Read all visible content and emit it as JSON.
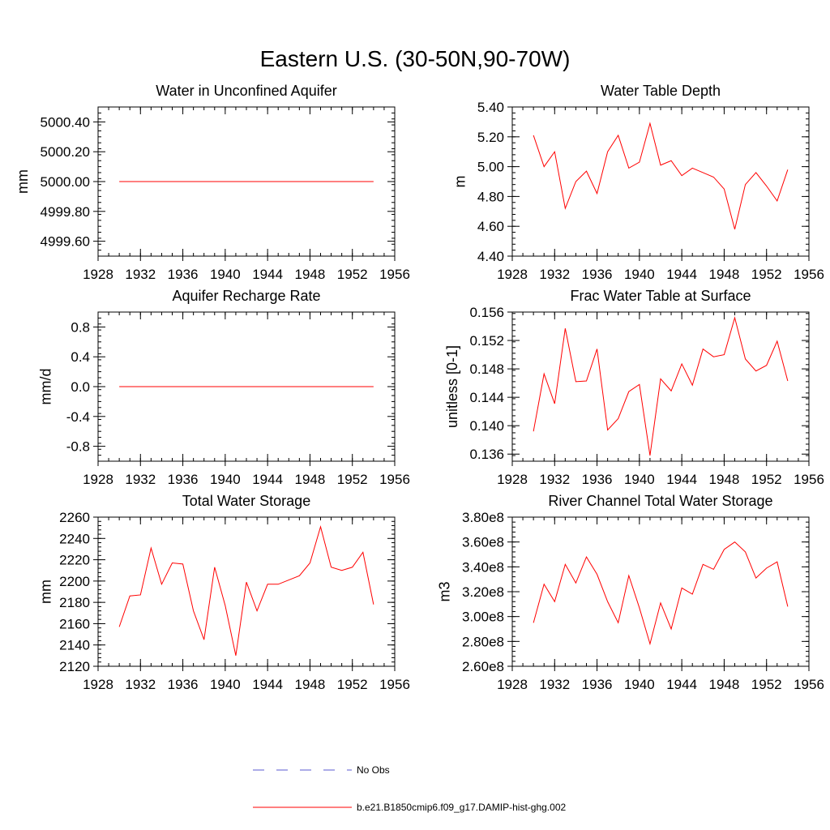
{
  "title": "Eastern U.S. (30-50N,90-70W)",
  "legend": [
    {
      "label": "No Obs",
      "color": "#5a5ad0",
      "dash": true
    },
    {
      "label": "b.e21.B1850cmip6.f09_g17.DAMIP-hist-ghg.002",
      "color": "#ff0000",
      "dash": false
    }
  ],
  "chart_data": [
    {
      "type": "line",
      "title": "Water in Unconfined Aquifer",
      "ylabel": "mm",
      "xlim": [
        1928,
        1956
      ],
      "ylim": [
        4999.5,
        5000.5
      ],
      "xticks": [
        1928,
        1932,
        1936,
        1940,
        1944,
        1948,
        1952,
        1956
      ],
      "xticklabels": [
        "1928",
        "1932",
        "1936",
        "1940",
        "1944",
        "1948",
        "1952",
        "1956"
      ],
      "yticks": [
        4999.6,
        4999.8,
        5000.0,
        5000.2,
        5000.4
      ],
      "yticklabels": [
        "4999.60",
        "4999.80",
        "5000.00",
        "5000.20",
        "5000.40"
      ],
      "series": [
        {
          "color": "#ff0000",
          "x": [
            1930,
            1931,
            1932,
            1933,
            1934,
            1935,
            1936,
            1937,
            1938,
            1939,
            1940,
            1941,
            1942,
            1943,
            1944,
            1945,
            1946,
            1947,
            1948,
            1949,
            1950,
            1951,
            1952,
            1953,
            1954
          ],
          "y": [
            5000.0,
            5000.0,
            5000.0,
            5000.0,
            5000.0,
            5000.0,
            5000.0,
            5000.0,
            5000.0,
            5000.0,
            5000.0,
            5000.0,
            5000.0,
            5000.0,
            5000.0,
            5000.0,
            5000.0,
            5000.0,
            5000.0,
            5000.0,
            5000.0,
            5000.0,
            5000.0,
            5000.0,
            5000.0
          ]
        }
      ]
    },
    {
      "type": "line",
      "title": "Water Table Depth",
      "ylabel": "m",
      "xlim": [
        1928,
        1956
      ],
      "ylim": [
        4.4,
        5.4
      ],
      "xticks": [
        1928,
        1932,
        1936,
        1940,
        1944,
        1948,
        1952,
        1956
      ],
      "xticklabels": [
        "1928",
        "1932",
        "1936",
        "1940",
        "1944",
        "1948",
        "1952",
        "1956"
      ],
      "yticks": [
        4.4,
        4.6,
        4.8,
        5.0,
        5.2,
        5.4
      ],
      "yticklabels": [
        "4.40",
        "4.60",
        "4.80",
        "5.00",
        "5.20",
        "5.40"
      ],
      "series": [
        {
          "color": "#ff0000",
          "x": [
            1930,
            1931,
            1932,
            1933,
            1934,
            1935,
            1936,
            1937,
            1938,
            1939,
            1940,
            1941,
            1942,
            1943,
            1944,
            1945,
            1946,
            1947,
            1948,
            1949,
            1950,
            1951,
            1952,
            1953,
            1954
          ],
          "y": [
            5.21,
            5.0,
            5.1,
            4.72,
            4.9,
            4.97,
            4.82,
            5.1,
            5.21,
            4.99,
            5.03,
            5.29,
            5.01,
            5.04,
            4.94,
            4.99,
            4.96,
            4.93,
            4.85,
            4.58,
            4.88,
            4.96,
            4.87,
            4.77,
            4.98
          ]
        }
      ]
    },
    {
      "type": "line",
      "title": "Aquifer Recharge Rate",
      "ylabel": "mm/d",
      "xlim": [
        1928,
        1956
      ],
      "ylim": [
        -1.0,
        1.0
      ],
      "xticks": [
        1928,
        1932,
        1936,
        1940,
        1944,
        1948,
        1952,
        1956
      ],
      "xticklabels": [
        "1928",
        "1932",
        "1936",
        "1940",
        "1944",
        "1948",
        "1952",
        "1956"
      ],
      "yticks": [
        -0.8,
        -0.4,
        0.0,
        0.4,
        0.8
      ],
      "yticklabels": [
        "-0.8",
        "-0.4",
        "0.0",
        "0.4",
        "0.8"
      ],
      "series": [
        {
          "color": "#ff0000",
          "x": [
            1930,
            1931,
            1932,
            1933,
            1934,
            1935,
            1936,
            1937,
            1938,
            1939,
            1940,
            1941,
            1942,
            1943,
            1944,
            1945,
            1946,
            1947,
            1948,
            1949,
            1950,
            1951,
            1952,
            1953,
            1954
          ],
          "y": [
            0,
            0,
            0,
            0,
            0,
            0,
            0,
            0,
            0,
            0,
            0,
            0,
            0,
            0,
            0,
            0,
            0,
            0,
            0,
            0,
            0,
            0,
            0,
            0,
            0
          ]
        }
      ]
    },
    {
      "type": "line",
      "title": "Frac Water Table at Surface",
      "ylabel": "unitless [0-1]",
      "xlim": [
        1928,
        1956
      ],
      "ylim": [
        0.135,
        0.156
      ],
      "xticks": [
        1928,
        1932,
        1936,
        1940,
        1944,
        1948,
        1952,
        1956
      ],
      "xticklabels": [
        "1928",
        "1932",
        "1936",
        "1940",
        "1944",
        "1948",
        "1952",
        "1956"
      ],
      "yticks": [
        0.136,
        0.14,
        0.144,
        0.148,
        0.152,
        0.156
      ],
      "yticklabels": [
        "0.136",
        "0.140",
        "0.144",
        "0.148",
        "0.152",
        "0.156"
      ],
      "series": [
        {
          "color": "#ff0000",
          "x": [
            1930,
            1931,
            1932,
            1933,
            1934,
            1935,
            1936,
            1937,
            1938,
            1939,
            1940,
            1941,
            1942,
            1943,
            1944,
            1945,
            1946,
            1947,
            1948,
            1949,
            1950,
            1951,
            1952,
            1953,
            1954
          ],
          "y": [
            0.1392,
            0.1473,
            0.1431,
            0.1537,
            0.1462,
            0.1463,
            0.1508,
            0.1394,
            0.141,
            0.1448,
            0.1458,
            0.1358,
            0.1466,
            0.1449,
            0.1487,
            0.1457,
            0.1508,
            0.1497,
            0.15,
            0.1552,
            0.1494,
            0.1477,
            0.1485,
            0.1519,
            0.1463
          ]
        }
      ]
    },
    {
      "type": "line",
      "title": "Total Water Storage",
      "ylabel": "mm",
      "xlim": [
        1928,
        1956
      ],
      "ylim": [
        2120,
        2260
      ],
      "xticks": [
        1928,
        1932,
        1936,
        1940,
        1944,
        1948,
        1952,
        1956
      ],
      "xticklabels": [
        "1928",
        "1932",
        "1936",
        "1940",
        "1944",
        "1948",
        "1952",
        "1956"
      ],
      "yticks": [
        2120,
        2140,
        2160,
        2180,
        2200,
        2220,
        2240,
        2260
      ],
      "yticklabels": [
        "2120",
        "2140",
        "2160",
        "2180",
        "2200",
        "2220",
        "2240",
        "2260"
      ],
      "series": [
        {
          "color": "#ff0000",
          "x": [
            1930,
            1931,
            1932,
            1933,
            1934,
            1935,
            1936,
            1937,
            1938,
            1939,
            1940,
            1941,
            1942,
            1943,
            1944,
            1945,
            1946,
            1947,
            1948,
            1949,
            1950,
            1951,
            1952,
            1953,
            1954
          ],
          "y": [
            2157,
            2186,
            2187,
            2231,
            2197,
            2217,
            2216,
            2172,
            2145,
            2213,
            2177,
            2130,
            2199,
            2172,
            2197,
            2197,
            2201,
            2205,
            2217,
            2251,
            2213,
            2210,
            2213,
            2227,
            2178
          ]
        }
      ]
    },
    {
      "type": "line",
      "title": "River Channel Total Water Storage",
      "ylabel": "m3",
      "xlim": [
        1928,
        1956
      ],
      "ylim": [
        260000000.0,
        380000000.0
      ],
      "xticks": [
        1928,
        1932,
        1936,
        1940,
        1944,
        1948,
        1952,
        1956
      ],
      "xticklabels": [
        "1928",
        "1932",
        "1936",
        "1940",
        "1944",
        "1948",
        "1952",
        "1956"
      ],
      "yticks": [
        260000000.0,
        280000000.0,
        300000000.0,
        320000000.0,
        340000000.0,
        360000000.0,
        380000000.0
      ],
      "yticklabels": [
        "2.60e8",
        "2.80e8",
        "3.00e8",
        "3.20e8",
        "3.40e8",
        "3.60e8",
        "3.80e8"
      ],
      "series": [
        {
          "color": "#ff0000",
          "x": [
            1930,
            1931,
            1932,
            1933,
            1934,
            1935,
            1936,
            1937,
            1938,
            1939,
            1940,
            1941,
            1942,
            1943,
            1944,
            1945,
            1946,
            1947,
            1948,
            1949,
            1950,
            1951,
            1952,
            1953,
            1954
          ],
          "y": [
            295000000.0,
            326000000.0,
            312000000.0,
            342000000.0,
            327000000.0,
            348000000.0,
            334000000.0,
            312000000.0,
            295000000.0,
            333000000.0,
            307000000.0,
            278000000.0,
            311000000.0,
            290000000.0,
            323000000.0,
            318000000.0,
            342000000.0,
            338000000.0,
            354000000.0,
            360000000.0,
            352000000.0,
            331000000.0,
            339000000.0,
            344000000.0,
            308000000.0
          ]
        }
      ]
    }
  ]
}
